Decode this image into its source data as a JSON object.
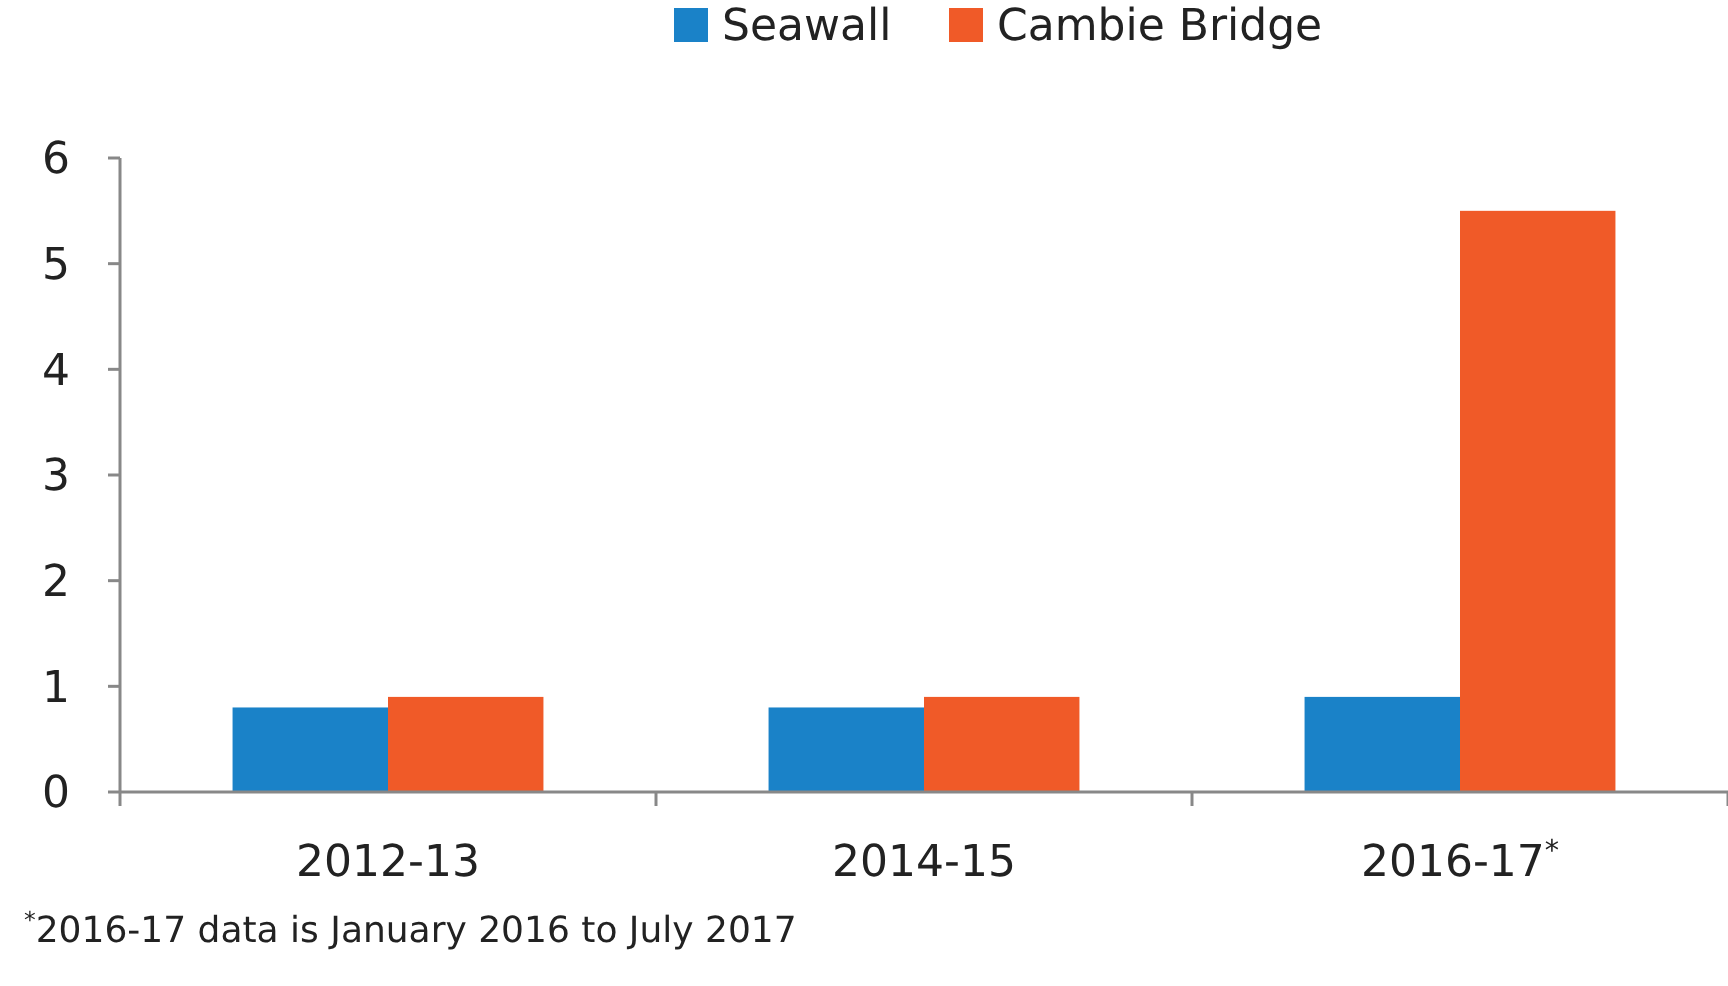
{
  "chart_data": {
    "type": "bar",
    "categories": [
      "2012-13",
      "2014-15",
      "2016-17$^{*}$"
    ],
    "series": [
      {
        "name": "Seawall",
        "color": "#1a82c8",
        "values": [
          0.8,
          0.8,
          0.9
        ]
      },
      {
        "name": "Cambie Bridge",
        "color": "#f05a28",
        "values": [
          0.9,
          0.9,
          5.5
        ]
      }
    ],
    "ylim": [
      0,
      6
    ],
    "yticks": [
      0,
      1,
      2,
      3,
      4,
      5,
      6
    ],
    "grid": false,
    "legend": "top",
    "annotations": [
      "$^{*}$2016-17 data is January 2016 to July 2017"
    ]
  }
}
